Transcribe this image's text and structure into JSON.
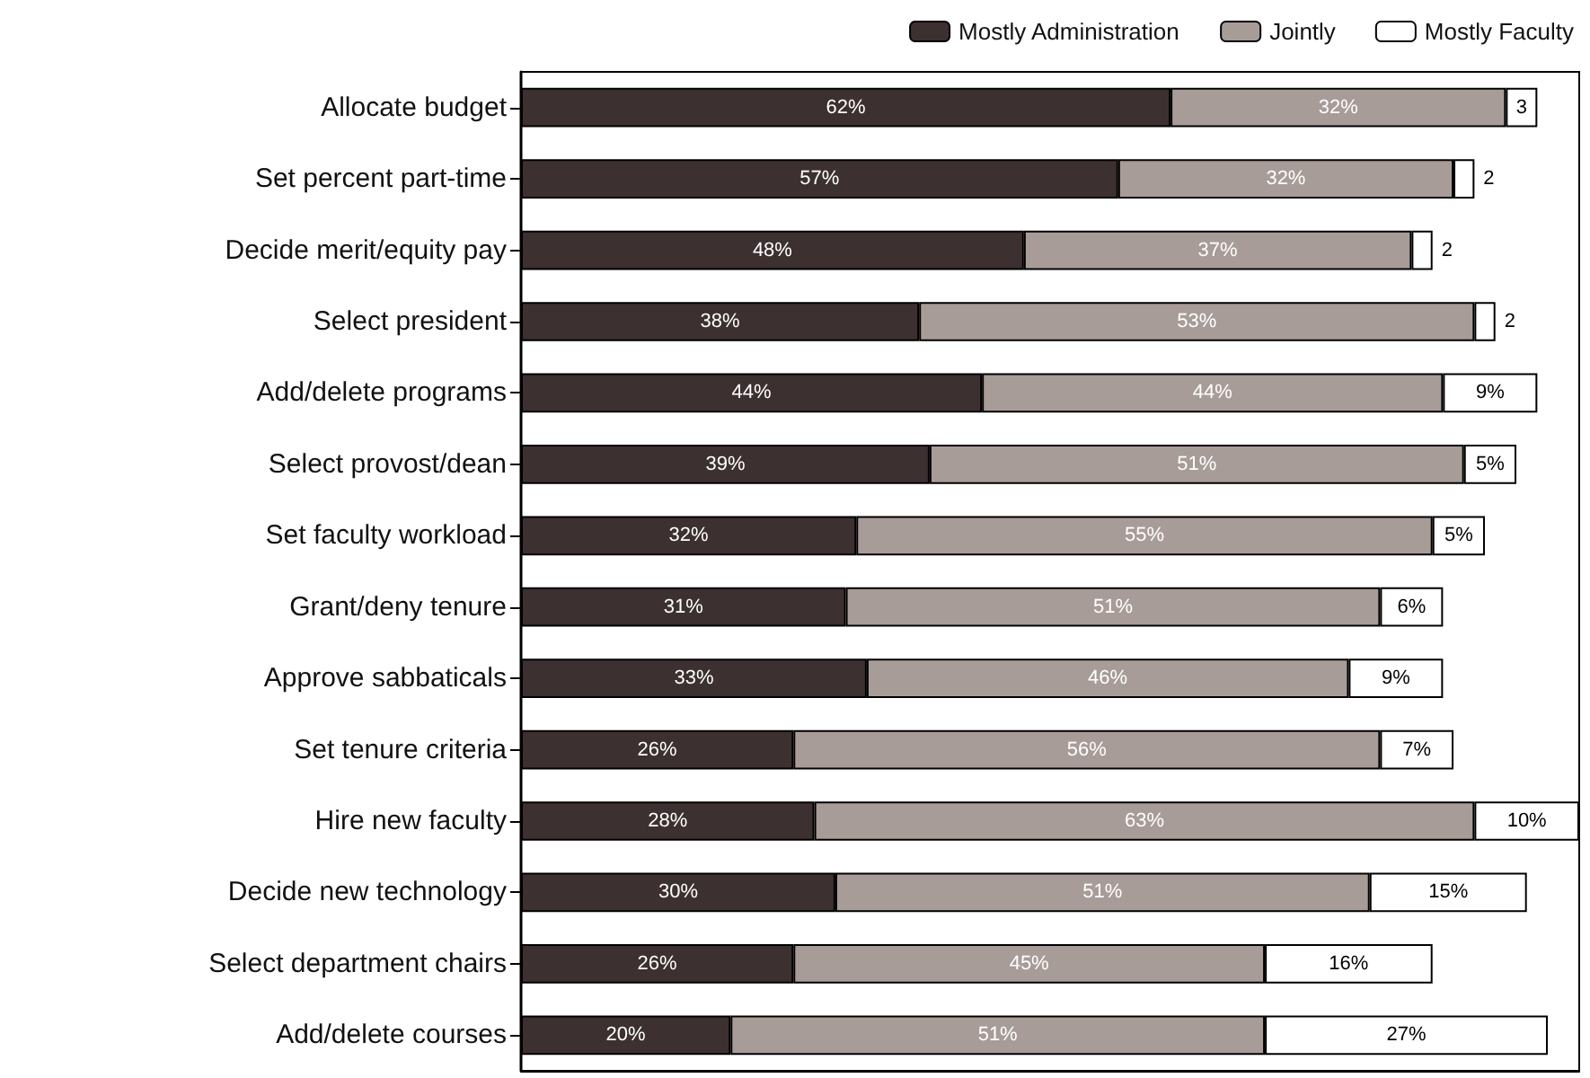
{
  "chart_data": {
    "type": "bar",
    "orientation": "horizontal",
    "stacked": true,
    "legend": "top right",
    "grid": false,
    "tick_labels": "y",
    "xlim": [
      0,
      101
    ],
    "categories": [
      "Allocate budget",
      "Set percent part-time",
      "Decide merit/equity pay",
      "Select president",
      "Add/delete programs",
      "Select provost/dean",
      "Set faculty workload",
      "Grant/deny tenure",
      "Approve sabbaticals",
      "Set tenure criteria",
      "Hire new faculty",
      "Decide new technology",
      "Select department chairs",
      "Add/delete courses"
    ],
    "series": [
      {
        "name": "Mostly Administration",
        "color": "#3d3030",
        "values": [
          62,
          57,
          48,
          38,
          44,
          39,
          32,
          31,
          33,
          26,
          28,
          30,
          26,
          20
        ],
        "value_labels": [
          "62%",
          "57%",
          "48%",
          "38%",
          "44%",
          "39%",
          "32%",
          "31%",
          "33%",
          "26%",
          "28%",
          "30%",
          "26%",
          "20%"
        ]
      },
      {
        "name": "Jointly",
        "color": "#a89c98",
        "values": [
          32,
          32,
          37,
          53,
          44,
          51,
          55,
          51,
          46,
          56,
          63,
          51,
          45,
          51
        ],
        "value_labels": [
          "32%",
          "32%",
          "37%",
          "53%",
          "44%",
          "51%",
          "55%",
          "51%",
          "46%",
          "56%",
          "63%",
          "51%",
          "45%",
          "51%"
        ]
      },
      {
        "name": "Mostly Faculty",
        "color": "#ffffff",
        "values": [
          3,
          2,
          2,
          2,
          9,
          5,
          5,
          6,
          9,
          7,
          10,
          15,
          16,
          27
        ],
        "value_labels": [
          "3",
          "2",
          "2",
          "2",
          "9%",
          "5%",
          "5%",
          "6%",
          "9%",
          "7%",
          "10%",
          "15%",
          "16%",
          "27%"
        ]
      }
    ]
  }
}
